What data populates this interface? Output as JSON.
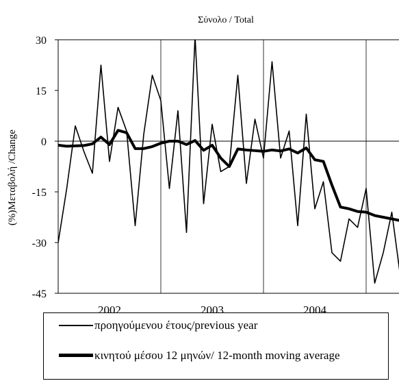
{
  "chart_data": {
    "type": "line",
    "title": "Σύνολο / Total",
    "xlabel": "",
    "ylabel": "(%)Μεταβολή /Change",
    "ylim": [
      -45,
      30
    ],
    "yticks": [
      "30",
      "15",
      "0",
      "-15",
      "-30",
      "-45"
    ],
    "year_labels": [
      "2002",
      "2003",
      "2004"
    ],
    "grid": "vertical lines at year boundaries",
    "legend_position": "below",
    "series": [
      {
        "name": "προηγούμενου έτους/previous year",
        "style": "thin",
        "values": [
          -30,
          -14,
          4.5,
          -3,
          -9.5,
          22.5,
          -6,
          10,
          3,
          -25,
          2,
          19.5,
          12,
          -14,
          9,
          -27,
          31,
          -18.5,
          5,
          -9,
          -7.5,
          19.5,
          -12.5,
          6.5,
          -5,
          23.5,
          -5,
          3,
          -25,
          8,
          -20,
          -12,
          -33,
          -35.5,
          -23,
          -25.5,
          -14,
          -42,
          -33,
          -21,
          -40
        ]
      },
      {
        "name": "κινητού μέσου 12 μηνών/ 12-month moving average",
        "style": "thick",
        "values": [
          -1.2,
          -1.5,
          -1.4,
          -1.3,
          -0.8,
          1.2,
          -1.0,
          3.2,
          2.5,
          -2.2,
          -2.2,
          -1.6,
          -0.6,
          0.0,
          0.0,
          -1.0,
          0.2,
          -2.7,
          -1.2,
          -5.0,
          -7.5,
          -2.3,
          -2.6,
          -2.8,
          -3.0,
          -2.6,
          -2.9,
          -2.3,
          -3.5,
          -2.0,
          -5.5,
          -6.0,
          -13.0,
          -19.5,
          -20.0,
          -20.8,
          -21.0,
          -22.0,
          -22.5,
          -23.0,
          -23.5
        ]
      }
    ]
  }
}
